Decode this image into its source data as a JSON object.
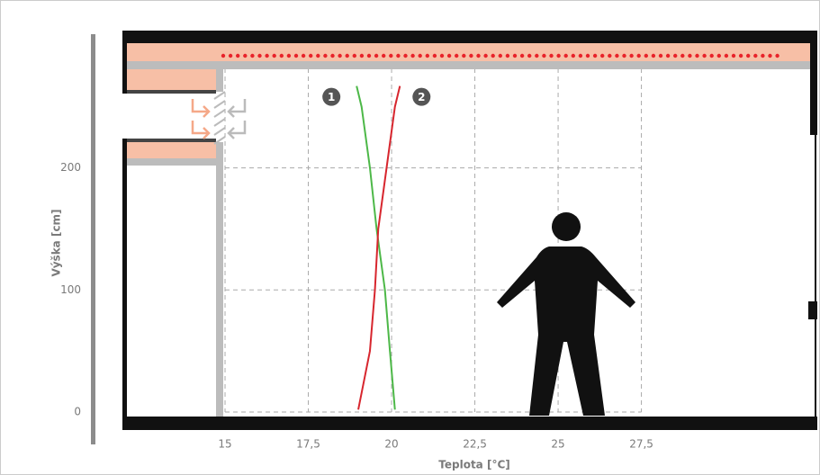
{
  "chart_data": {
    "type": "line",
    "orientation": "horizontal",
    "x_label": "Teplota [°C]",
    "y_label": "Výška [cm]",
    "y": [
      2,
      50,
      100,
      150,
      200,
      250,
      267
    ],
    "series": [
      {
        "name": "1",
        "color": "#4db848",
        "values": [
          20.1,
          19.95,
          19.8,
          19.55,
          19.35,
          19.1,
          18.95
        ]
      },
      {
        "name": "2",
        "color": "#d7262e",
        "values": [
          19.0,
          19.35,
          19.5,
          19.6,
          19.85,
          20.1,
          20.25
        ]
      }
    ],
    "xlim": [
      12,
      32.7
    ],
    "ylim": [
      0,
      308
    ],
    "xticks": [
      15,
      {
        "value": 17.5,
        "label": "17,5"
      },
      20,
      {
        "value": 22.5,
        "label": "22,5"
      },
      25,
      {
        "value": 27.5,
        "label": "27,5"
      }
    ],
    "yticks": [
      0,
      100,
      200
    ],
    "grid": true
  }
}
